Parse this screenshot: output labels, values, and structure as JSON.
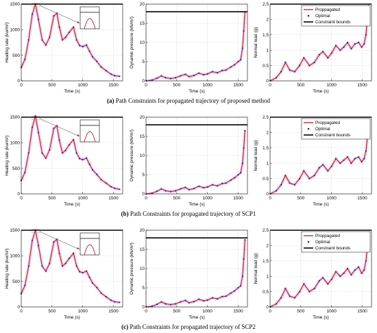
{
  "captions": [
    {
      "tag": "(a)",
      "text": "Path Constraints for propagated trajectory of proposed method"
    },
    {
      "tag": "(b)",
      "text": "Path Constraints for propagated trajectory of SCP1"
    },
    {
      "tag": "(c)",
      "text": "Path Constraints for propagated trajectory of SCP2"
    }
  ],
  "legend": {
    "items": [
      "Proppagated",
      "Optimal",
      "Constraint bounds"
    ]
  },
  "colors": {
    "propagated": "#b22222",
    "optimal": "#1f1fcc",
    "bound": "#000000",
    "highlight": "#ff9fd0"
  },
  "chart_data": [
    {
      "type": "line",
      "panel": "heating",
      "row": 0,
      "xlabel": "Time (s)",
      "ylabel": "Heating rate (kw/m²)",
      "xlim": [
        0,
        1650
      ],
      "ylim": [
        0,
        1500
      ],
      "xticks": [
        0,
        500,
        1000,
        1500
      ],
      "yticks": [
        0,
        500,
        1000,
        1500
      ],
      "bound": 1500,
      "inset": true,
      "x": [
        0,
        60,
        120,
        180,
        230,
        280,
        340,
        400,
        460,
        530,
        580,
        620,
        670,
        720,
        780,
        850,
        900,
        950,
        1000,
        1060,
        1110,
        1160,
        1230,
        1300,
        1380,
        1460,
        1520,
        1600
      ],
      "y": [
        260,
        420,
        800,
        1300,
        1500,
        1200,
        800,
        700,
        850,
        1270,
        1320,
        1050,
        800,
        850,
        950,
        1050,
        800,
        690,
        670,
        700,
        580,
        470,
        380,
        270,
        200,
        130,
        100,
        90
      ]
    },
    {
      "type": "line",
      "panel": "pressure",
      "row": 0,
      "xlabel": "Time (s)",
      "ylabel": "Dynamic pressure (kN/m²)",
      "xlim": [
        0,
        1650
      ],
      "ylim": [
        0,
        20
      ],
      "xticks": [
        0,
        500,
        1000,
        1500
      ],
      "yticks": [
        0,
        5,
        10,
        15,
        20
      ],
      "bound": 18,
      "x": [
        0,
        100,
        180,
        250,
        320,
        400,
        480,
        560,
        640,
        700,
        780,
        860,
        940,
        1000,
        1080,
        1160,
        1240,
        1300,
        1380,
        1440,
        1500,
        1540,
        1570,
        1590,
        1610
      ],
      "y": [
        0,
        0.2,
        0.7,
        1.3,
        0.8,
        0.6,
        0.8,
        1.3,
        1.7,
        1.1,
        1.4,
        2.0,
        1.6,
        1.8,
        2.4,
        2.1,
        2.7,
        2.8,
        3.6,
        4.2,
        5.0,
        5.5,
        8.5,
        13.0,
        18.0
      ]
    },
    {
      "type": "line",
      "panel": "load",
      "row": 0,
      "xlabel": "Time (s)",
      "ylabel": "Normal load (g)",
      "xlim": [
        0,
        1650
      ],
      "ylim": [
        0,
        2.5
      ],
      "xticks": [
        0,
        500,
        1000,
        1500
      ],
      "yticks": [
        0,
        0.5,
        1,
        1.5,
        2,
        2.5
      ],
      "bound": 2.5,
      "legend": true,
      "x": [
        0,
        100,
        180,
        250,
        320,
        400,
        480,
        550,
        640,
        720,
        800,
        860,
        940,
        1000,
        1070,
        1140,
        1200,
        1260,
        1320,
        1380,
        1440,
        1490,
        1530,
        1560,
        1580,
        1600
      ],
      "y": [
        0,
        0.1,
        0.3,
        0.6,
        0.35,
        0.3,
        0.5,
        0.75,
        0.5,
        0.6,
        0.85,
        0.95,
        0.75,
        0.9,
        1.15,
        1.0,
        1.1,
        1.25,
        1.05,
        1.2,
        1.25,
        1.1,
        1.2,
        1.5,
        2.0,
        2.45
      ]
    },
    {
      "type": "line",
      "panel": "heating",
      "row": 1,
      "xlabel": "Time (s)",
      "ylabel": "Heating rate (kw/m²)",
      "xlim": [
        0,
        1650
      ],
      "ylim": [
        0,
        1500
      ],
      "xticks": [
        0,
        500,
        1000,
        1500
      ],
      "yticks": [
        0,
        500,
        1000,
        1500
      ],
      "bound": 1500,
      "inset": true,
      "x": [
        0,
        60,
        120,
        180,
        230,
        280,
        340,
        400,
        460,
        530,
        580,
        620,
        670,
        720,
        780,
        850,
        900,
        950,
        1000,
        1060,
        1110,
        1160,
        1230,
        1300,
        1380,
        1460,
        1520,
        1600
      ],
      "y": [
        260,
        420,
        800,
        1300,
        1520,
        1200,
        800,
        700,
        860,
        1280,
        1330,
        1050,
        800,
        850,
        960,
        1060,
        800,
        690,
        670,
        700,
        580,
        470,
        380,
        280,
        210,
        140,
        110,
        90
      ]
    },
    {
      "type": "line",
      "panel": "pressure",
      "row": 1,
      "xlabel": "Time (s)",
      "ylabel": "Dynamic pressure (kN/m²)",
      "xlim": [
        0,
        1650
      ],
      "ylim": [
        0,
        20
      ],
      "xticks": [
        0,
        500,
        1000,
        1500
      ],
      "yticks": [
        0,
        5,
        10,
        15,
        20
      ],
      "bound": 18,
      "x": [
        0,
        100,
        180,
        250,
        320,
        400,
        480,
        560,
        640,
        700,
        780,
        860,
        940,
        1000,
        1080,
        1160,
        1240,
        1300,
        1380,
        1440,
        1500,
        1540,
        1570,
        1590,
        1610
      ],
      "y": [
        0,
        0.2,
        0.7,
        1.3,
        0.8,
        0.6,
        0.8,
        1.3,
        1.7,
        1.1,
        1.4,
        2.0,
        1.6,
        1.8,
        2.4,
        2.1,
        2.7,
        2.8,
        3.6,
        4.2,
        5.0,
        5.5,
        8.0,
        12.0,
        16.5
      ]
    },
    {
      "type": "line",
      "panel": "load",
      "row": 1,
      "xlabel": "Time (s)",
      "ylabel": "Normal load (g)",
      "xlim": [
        0,
        1650
      ],
      "ylim": [
        0,
        2.5
      ],
      "xticks": [
        0,
        500,
        1000,
        1500
      ],
      "yticks": [
        0,
        0.5,
        1,
        1.5,
        2,
        2.5
      ],
      "bound": 2.5,
      "legend": true,
      "x": [
        0,
        100,
        180,
        250,
        320,
        400,
        480,
        550,
        640,
        720,
        800,
        860,
        940,
        1000,
        1070,
        1140,
        1200,
        1260,
        1320,
        1380,
        1440,
        1490,
        1530,
        1560,
        1580,
        1600
      ],
      "y": [
        0,
        0.1,
        0.3,
        0.6,
        0.35,
        0.3,
        0.5,
        0.75,
        0.5,
        0.6,
        0.85,
        0.95,
        0.75,
        0.9,
        1.15,
        1.0,
        1.1,
        1.2,
        1.0,
        1.15,
        1.2,
        1.05,
        1.15,
        1.4,
        1.8,
        2.0
      ]
    },
    {
      "type": "line",
      "panel": "heating",
      "row": 2,
      "xlabel": "Time (s)",
      "ylabel": "Heating rate (kw/m²)",
      "xlim": [
        0,
        1650
      ],
      "ylim": [
        0,
        1500
      ],
      "xticks": [
        0,
        500,
        1000,
        1500
      ],
      "yticks": [
        0,
        500,
        1000,
        1500
      ],
      "bound": 1500,
      "inset": true,
      "x": [
        0,
        60,
        120,
        180,
        230,
        280,
        340,
        400,
        460,
        530,
        580,
        620,
        670,
        720,
        780,
        850,
        900,
        950,
        1000,
        1060,
        1110,
        1160,
        1230,
        1300,
        1380,
        1460,
        1520,
        1600
      ],
      "y": [
        260,
        420,
        800,
        1300,
        1500,
        1200,
        800,
        700,
        850,
        1270,
        1320,
        1050,
        800,
        850,
        950,
        1050,
        800,
        690,
        670,
        700,
        580,
        470,
        380,
        270,
        200,
        130,
        100,
        90
      ]
    },
    {
      "type": "line",
      "panel": "pressure",
      "row": 2,
      "xlabel": "Time (s)",
      "ylabel": "Dynamic pressure (kN/m²)",
      "xlim": [
        0,
        1650
      ],
      "ylim": [
        0,
        20
      ],
      "xticks": [
        0,
        500,
        1000,
        1500
      ],
      "yticks": [
        0,
        5,
        10,
        15,
        20
      ],
      "bound": 18,
      "x": [
        0,
        100,
        180,
        250,
        320,
        400,
        480,
        560,
        640,
        700,
        780,
        860,
        940,
        1000,
        1080,
        1160,
        1240,
        1300,
        1380,
        1440,
        1500,
        1540,
        1570,
        1590,
        1610
      ],
      "y": [
        0,
        0.2,
        0.7,
        1.3,
        0.8,
        0.6,
        0.8,
        1.3,
        1.7,
        1.1,
        1.4,
        2.0,
        1.6,
        1.8,
        2.4,
        2.1,
        2.7,
        2.8,
        3.6,
        4.2,
        5.0,
        5.5,
        8.0,
        12.5,
        17.5
      ]
    },
    {
      "type": "line",
      "panel": "load",
      "row": 2,
      "xlabel": "Time (s)",
      "ylabel": "Normal load (g)",
      "xlim": [
        0,
        1650
      ],
      "ylim": [
        0,
        2.5
      ],
      "xticks": [
        0,
        500,
        1000,
        1500
      ],
      "yticks": [
        0,
        0.5,
        1,
        1.5,
        2,
        2.5
      ],
      "bound": 2.5,
      "legend": true,
      "x": [
        0,
        100,
        180,
        250,
        320,
        400,
        480,
        550,
        640,
        720,
        800,
        860,
        940,
        1000,
        1070,
        1140,
        1200,
        1260,
        1320,
        1380,
        1440,
        1490,
        1530,
        1560,
        1580,
        1600
      ],
      "y": [
        0,
        0.1,
        0.3,
        0.6,
        0.35,
        0.3,
        0.5,
        0.75,
        0.5,
        0.6,
        0.85,
        0.95,
        0.75,
        0.9,
        1.15,
        1.0,
        1.1,
        1.25,
        1.05,
        1.2,
        1.3,
        1.1,
        1.2,
        1.5,
        1.9,
        2.35
      ]
    }
  ]
}
